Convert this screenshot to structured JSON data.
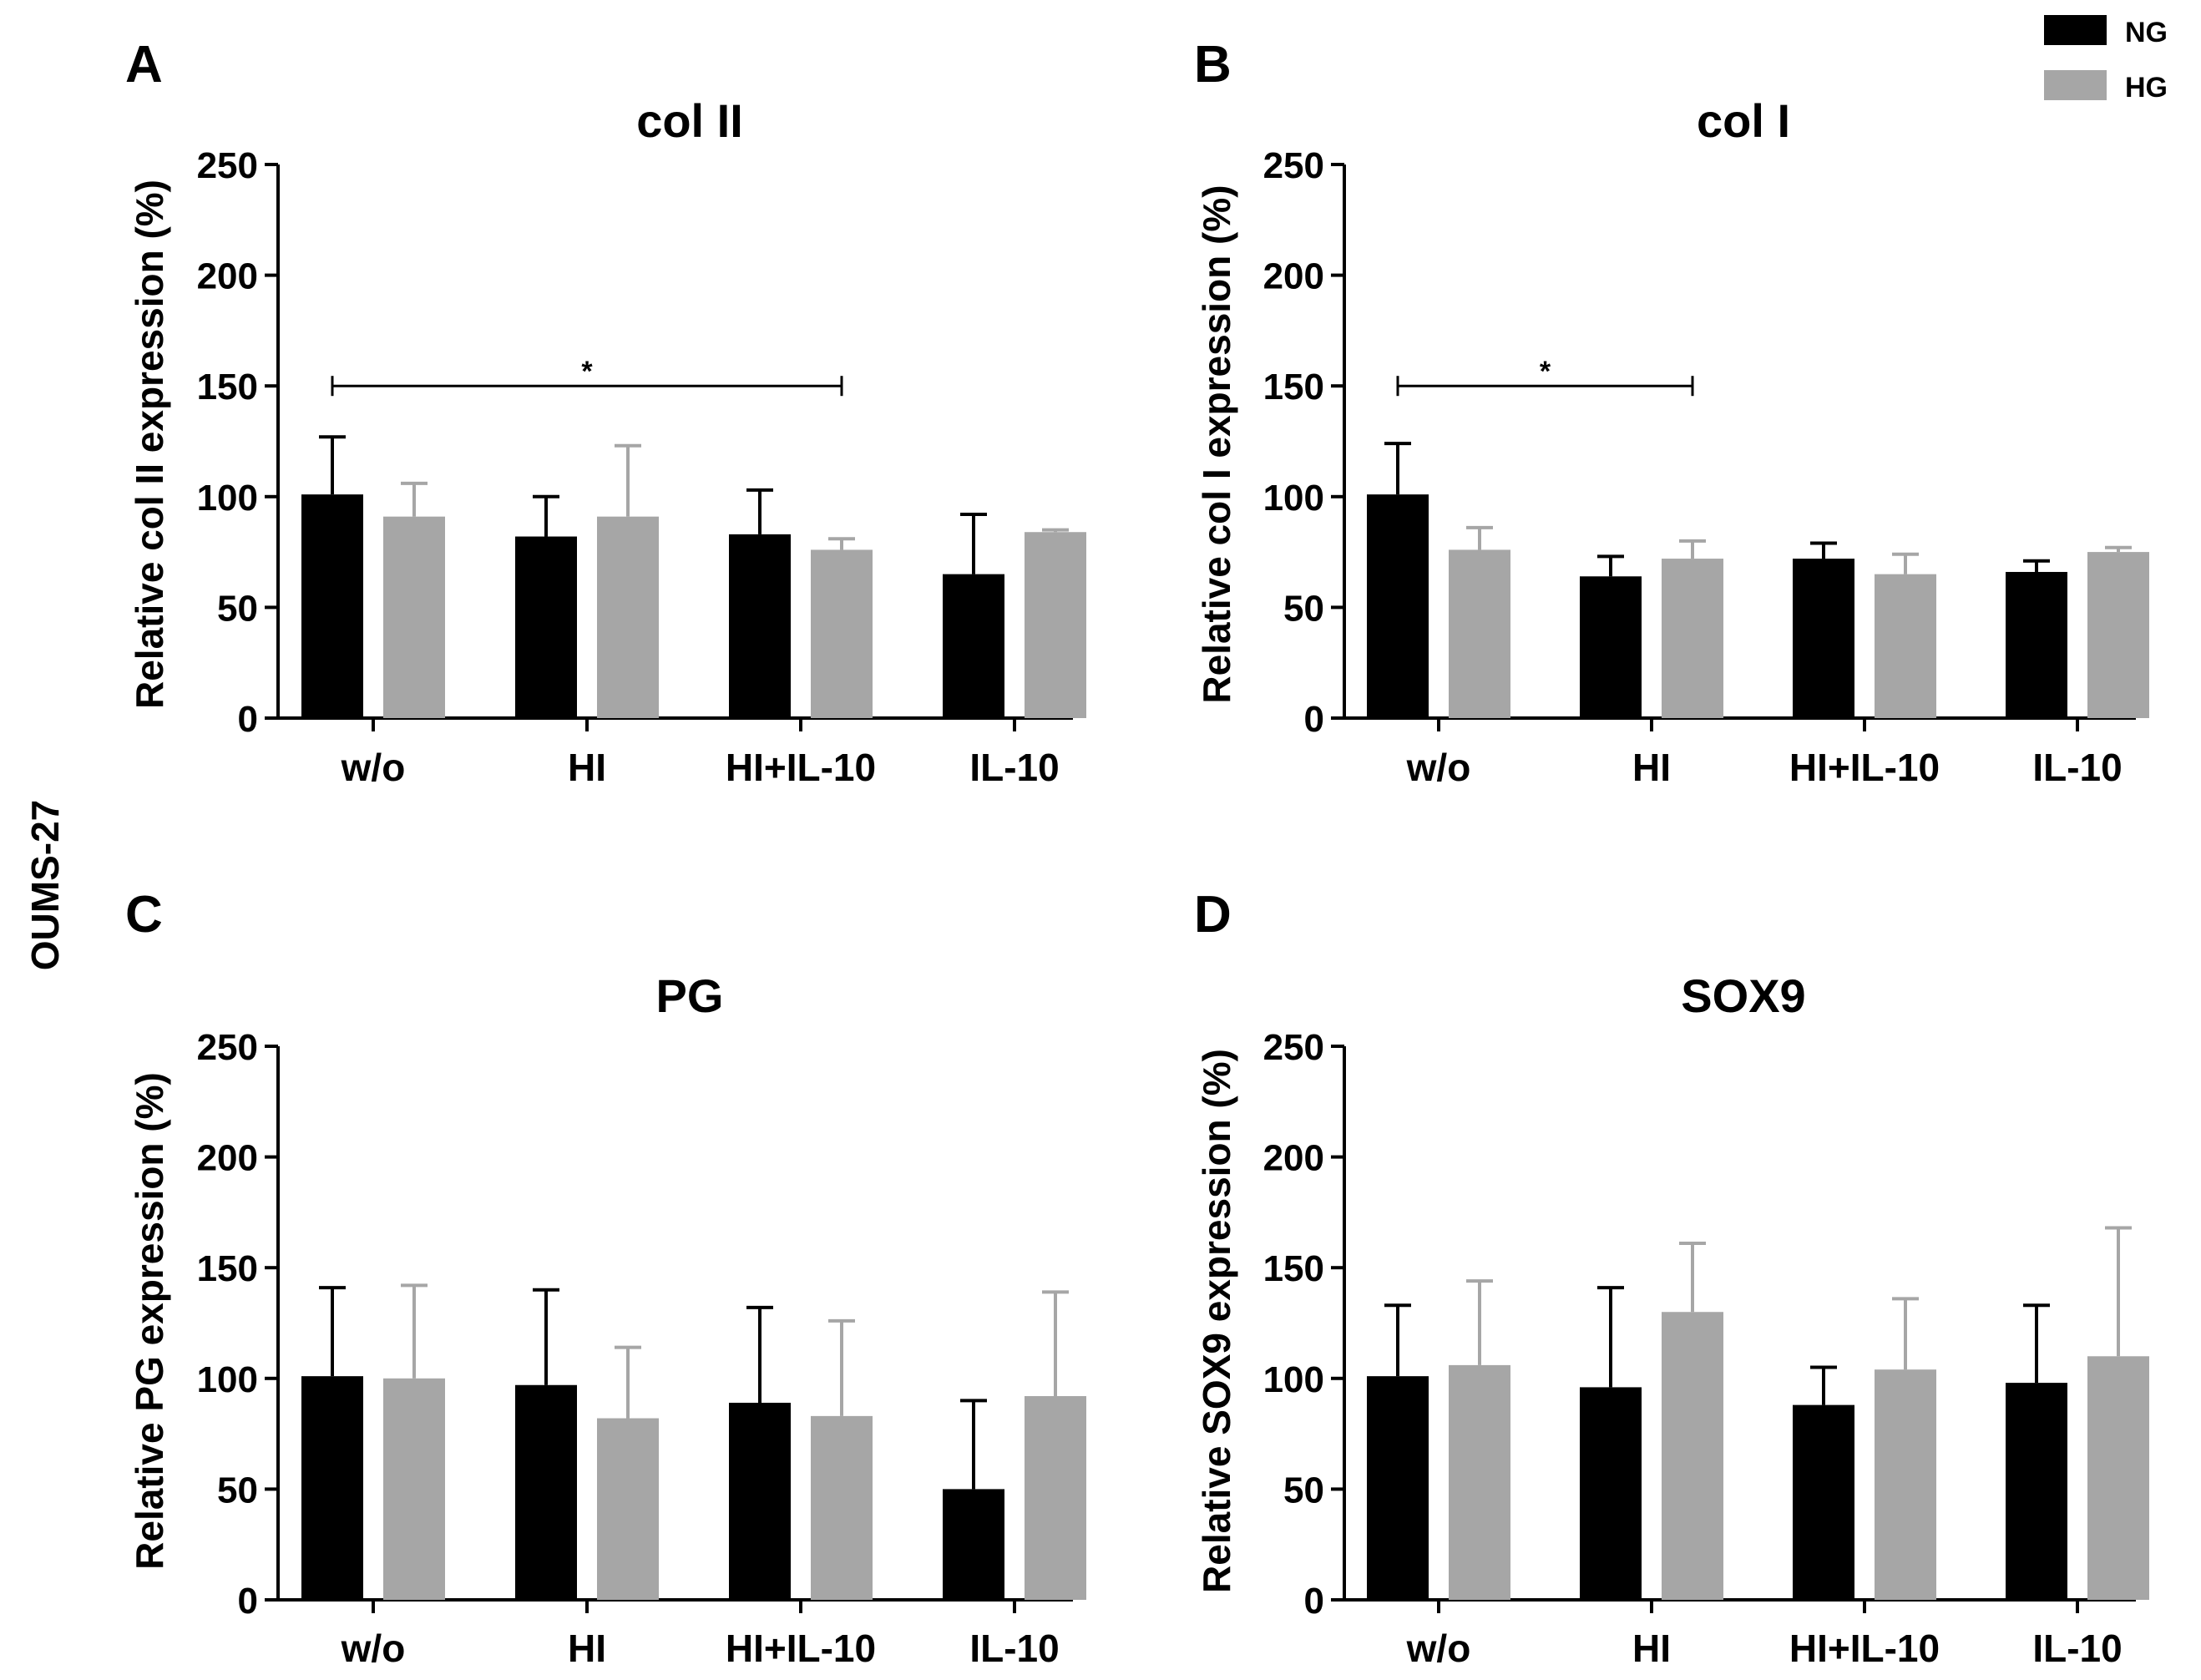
{
  "figure": {
    "side_label": "OUMS-27",
    "legend": [
      {
        "label": "NG",
        "color": "#000000"
      },
      {
        "label": "HG",
        "color": "#a6a6a6"
      }
    ]
  },
  "chart_data": [
    {
      "panel": "A",
      "type": "bar",
      "title": "col II",
      "ylabel": "Relative col II expression (%)",
      "xlabel": "",
      "categories": [
        "w/o",
        "HI",
        "HI+IL-10",
        "IL-10"
      ],
      "yticks": [
        "0",
        "50",
        "100",
        "150",
        "200",
        "250"
      ],
      "ylim": [
        0,
        250
      ],
      "series": [
        {
          "name": "NG",
          "values": [
            101,
            82,
            83,
            65
          ],
          "errors": [
            26,
            18,
            20,
            27
          ]
        },
        {
          "name": "HG",
          "values": [
            91,
            91,
            76,
            84
          ],
          "errors": [
            15,
            32,
            5,
            1
          ]
        }
      ],
      "significance": [
        {
          "from": 0,
          "to": 2,
          "value": 150,
          "label": "*"
        }
      ]
    },
    {
      "panel": "B",
      "type": "bar",
      "title": "col I",
      "ylabel": "Relative col I expression (%)",
      "xlabel": "",
      "categories": [
        "w/o",
        "HI",
        "HI+IL-10",
        "IL-10"
      ],
      "yticks": [
        "0",
        "50",
        "100",
        "150",
        "200",
        "250"
      ],
      "ylim": [
        0,
        250
      ],
      "series": [
        {
          "name": "NG",
          "values": [
            101,
            64,
            72,
            66
          ],
          "errors": [
            23,
            9,
            7,
            5
          ]
        },
        {
          "name": "HG",
          "values": [
            76,
            72,
            65,
            75
          ],
          "errors": [
            10,
            8,
            9,
            2
          ]
        }
      ],
      "significance": [
        {
          "from": 0,
          "to": 1,
          "value": 150,
          "label": "*"
        }
      ]
    },
    {
      "panel": "C",
      "type": "bar",
      "title": "PG",
      "ylabel": "Relative PG expression (%)",
      "xlabel": "",
      "categories": [
        "w/o",
        "HI",
        "HI+IL-10",
        "IL-10"
      ],
      "yticks": [
        "0",
        "50",
        "100",
        "150",
        "200",
        "250"
      ],
      "ylim": [
        0,
        250
      ],
      "series": [
        {
          "name": "NG",
          "values": [
            101,
            97,
            89,
            50
          ],
          "errors": [
            40,
            43,
            43,
            40
          ]
        },
        {
          "name": "HG",
          "values": [
            100,
            82,
            83,
            92
          ],
          "errors": [
            42,
            32,
            43,
            47
          ]
        }
      ],
      "significance": []
    },
    {
      "panel": "D",
      "type": "bar",
      "title": "SOX9",
      "ylabel": "Relative SOX9 expression (%)",
      "xlabel": "",
      "categories": [
        "w/o",
        "HI",
        "HI+IL-10",
        "IL-10"
      ],
      "yticks": [
        "0",
        "50",
        "100",
        "150",
        "200",
        "250"
      ],
      "ylim": [
        0,
        250
      ],
      "series": [
        {
          "name": "NG",
          "values": [
            101,
            96,
            88,
            98
          ],
          "errors": [
            32,
            45,
            17,
            35
          ]
        },
        {
          "name": "HG",
          "values": [
            106,
            130,
            104,
            110
          ],
          "errors": [
            38,
            31,
            32,
            58
          ]
        }
      ],
      "significance": []
    }
  ]
}
